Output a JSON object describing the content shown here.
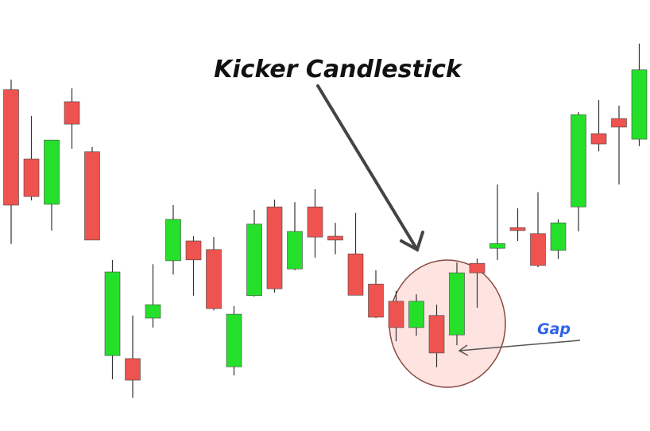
{
  "chart_data": {
    "type": "candlestick",
    "title": "Kicker Candlestick",
    "annotation": "Gap",
    "up_color": "#25e02b",
    "down_color": "#ef5350",
    "ylim": [
      0,
      100
    ],
    "open": [
      79.2,
      63.1,
      52.6,
      76.4,
      64.8,
      17.5,
      16.8,
      26.2,
      39.5,
      44.1,
      42.1,
      14.9,
      31.4,
      52.0,
      37.6,
      52.0,
      45.2,
      41.1,
      34.1,
      30.1,
      24.0,
      26.8,
      22.3,
      38.9,
      42.4,
      47.2,
      45.8,
      41.9,
      52.0,
      69.0,
      72.5,
      67.7
    ],
    "high": [
      81.5,
      73.1,
      67.5,
      79.5,
      65.9,
      39.7,
      26.8,
      38.7,
      52.4,
      45.2,
      45.0,
      29.0,
      51.3,
      53.7,
      53.1,
      56.1,
      48.3,
      50.6,
      37.3,
      32.5,
      31.7,
      29.3,
      39.1,
      40.0,
      57.2,
      51.7,
      55.4,
      49.1,
      74.0,
      76.8,
      75.5,
      89.9
    ],
    "low": [
      43.4,
      53.5,
      46.5,
      65.5,
      44.3,
      12.0,
      7.7,
      24.0,
      36.3,
      31.4,
      28.0,
      12.9,
      31.2,
      32.1,
      37.3,
      40.2,
      41.0,
      31.5,
      26.2,
      20.8,
      22.1,
      14.8,
      19.9,
      28.6,
      39.7,
      44.1,
      38.0,
      39.9,
      46.3,
      64.9,
      57.2,
      66.1
    ],
    "close": [
      52.4,
      54.4,
      67.5,
      71.2,
      44.3,
      36.9,
      11.8,
      29.3,
      49.1,
      39.7,
      28.4,
      27.1,
      48.0,
      33.0,
      46.3,
      45.0,
      44.3,
      31.5,
      26.4,
      24.0,
      30.1,
      18.1,
      36.7,
      36.7,
      43.5,
      46.5,
      38.4,
      48.3,
      73.4,
      66.6,
      70.5,
      83.8
    ]
  }
}
